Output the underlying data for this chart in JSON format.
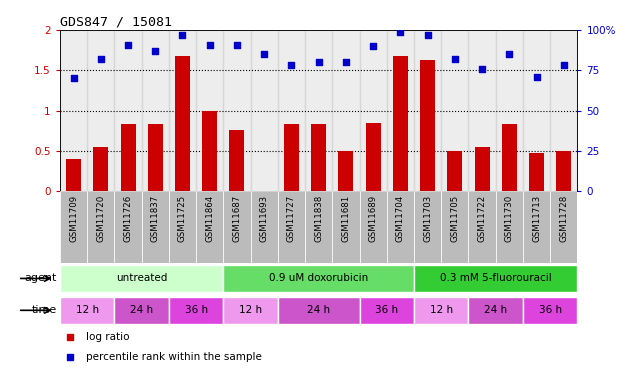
{
  "title": "GDS847 / 15081",
  "samples": [
    "GSM11709",
    "GSM11720",
    "GSM11726",
    "GSM11837",
    "GSM11725",
    "GSM11864",
    "GSM11687",
    "GSM11693",
    "GSM11727",
    "GSM11838",
    "GSM11681",
    "GSM11689",
    "GSM11704",
    "GSM11703",
    "GSM11705",
    "GSM11722",
    "GSM11730",
    "GSM11713",
    "GSM11728"
  ],
  "log_ratio": [
    0.4,
    0.55,
    0.83,
    0.83,
    1.68,
    1.0,
    0.76,
    0.0,
    0.83,
    0.83,
    0.5,
    0.85,
    1.68,
    1.63,
    0.5,
    0.55,
    0.83,
    0.47,
    0.5
  ],
  "percentile": [
    70,
    82,
    91,
    87,
    97,
    91,
    91,
    85,
    78,
    80,
    80,
    90,
    99,
    97,
    82,
    76,
    85,
    71,
    78
  ],
  "bar_color": "#cc0000",
  "dot_color": "#0000cc",
  "ylim_left": [
    0,
    2
  ],
  "ylim_right": [
    0,
    100
  ],
  "yticks_left": [
    0,
    0.5,
    1.0,
    1.5,
    2.0
  ],
  "yticks_right": [
    0,
    25,
    50,
    75,
    100
  ],
  "ytick_labels_right": [
    "0",
    "25",
    "50",
    "75",
    "100%"
  ],
  "hlines": [
    0.5,
    1.0,
    1.5
  ],
  "agent_groups": [
    {
      "label": "untreated",
      "start": 0,
      "end": 6,
      "color": "#ccffcc"
    },
    {
      "label": "0.9 uM doxorubicin",
      "start": 6,
      "end": 13,
      "color": "#66dd66"
    },
    {
      "label": "0.3 mM 5-fluorouracil",
      "start": 13,
      "end": 19,
      "color": "#33cc33"
    }
  ],
  "time_groups": [
    {
      "label": "12 h",
      "start": 0,
      "end": 2,
      "color": "#ee99ee"
    },
    {
      "label": "24 h",
      "start": 2,
      "end": 4,
      "color": "#cc55cc"
    },
    {
      "label": "36 h",
      "start": 4,
      "end": 6,
      "color": "#dd44dd"
    },
    {
      "label": "12 h",
      "start": 6,
      "end": 8,
      "color": "#ee99ee"
    },
    {
      "label": "24 h",
      "start": 8,
      "end": 11,
      "color": "#cc55cc"
    },
    {
      "label": "36 h",
      "start": 11,
      "end": 13,
      "color": "#dd44dd"
    },
    {
      "label": "12 h",
      "start": 13,
      "end": 15,
      "color": "#ee99ee"
    },
    {
      "label": "24 h",
      "start": 15,
      "end": 17,
      "color": "#cc55cc"
    },
    {
      "label": "36 h",
      "start": 17,
      "end": 19,
      "color": "#dd44dd"
    }
  ],
  "bg_color": "#ffffff",
  "tick_label_color_left": "#cc0000",
  "tick_label_color_right": "#0000cc",
  "xlabel_col_color": "#bbbbbb",
  "legend_bar_label": "log ratio",
  "legend_dot_label": "percentile rank within the sample"
}
